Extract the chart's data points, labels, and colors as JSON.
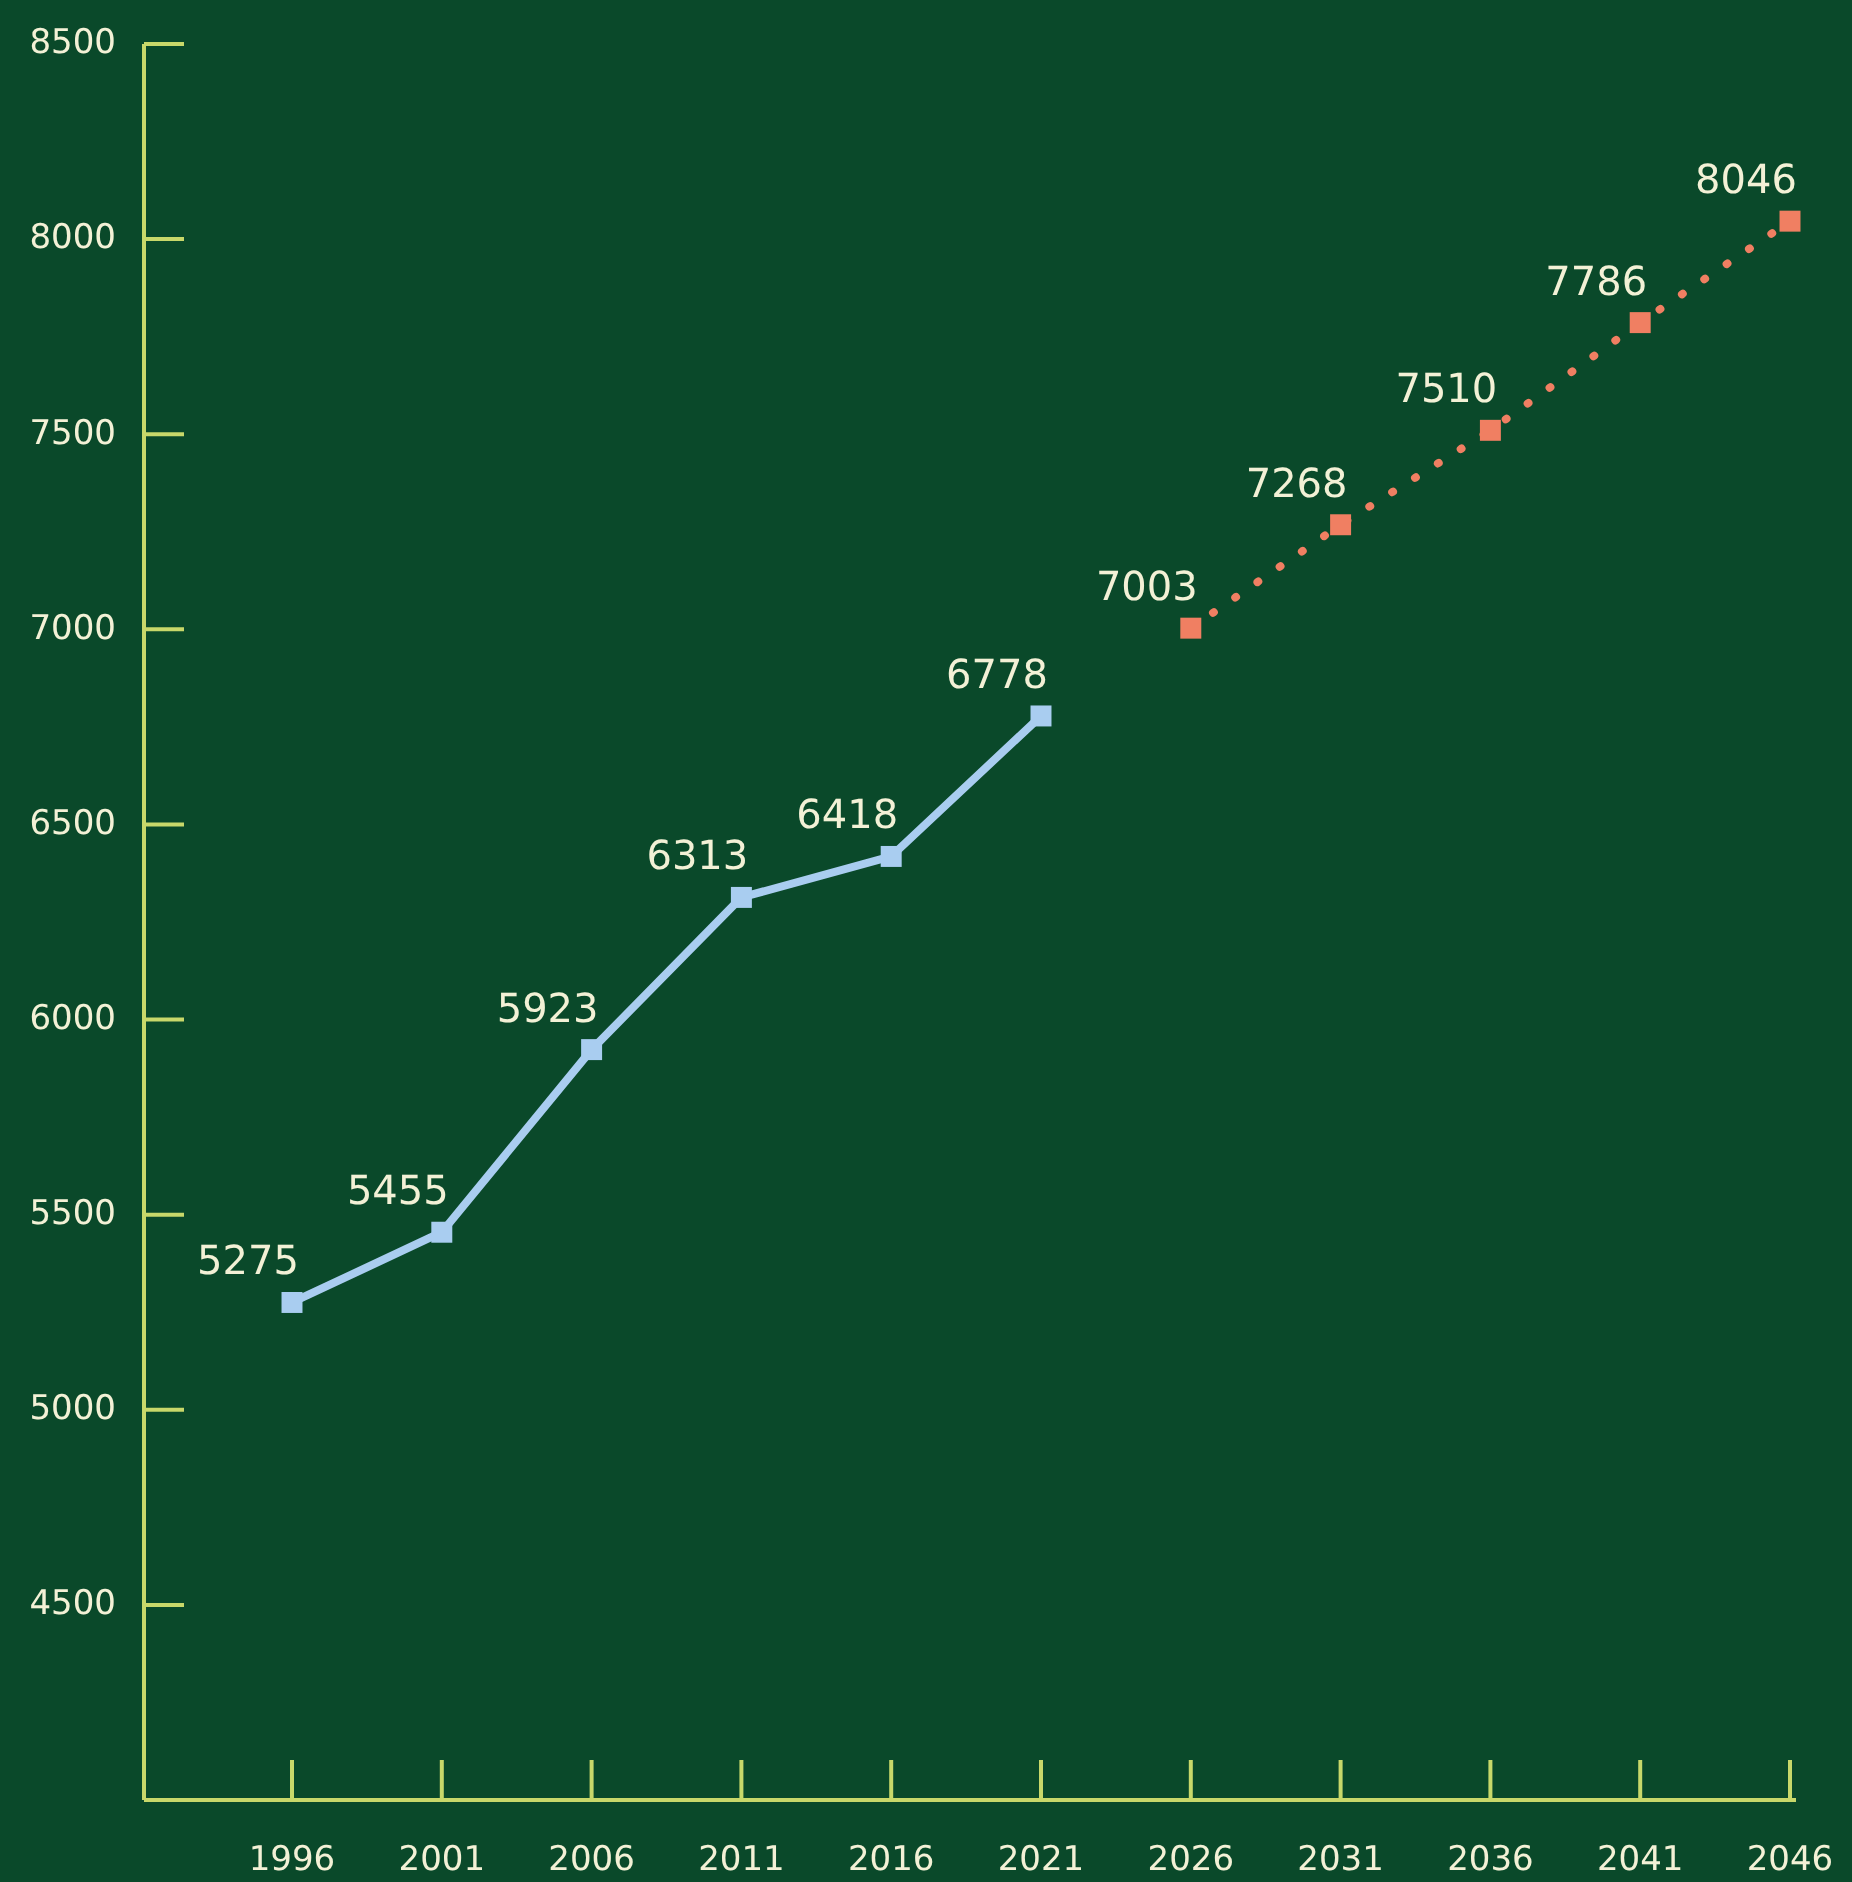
{
  "chart_data": {
    "type": "line",
    "categories": [
      "1996",
      "2001",
      "2006",
      "2011",
      "2016",
      "2021",
      "2026",
      "2031",
      "2036",
      "2041",
      "2046"
    ],
    "series": [
      {
        "color": "#a9cdf0",
        "values": [
          5275,
          5455,
          5923,
          6313,
          6418,
          6778,
          null,
          null,
          null,
          null,
          null
        ],
        "line_style": "solid"
      },
      {
        "color": "#f07f62",
        "values": [
          null,
          null,
          null,
          null,
          null,
          null,
          7003,
          7268,
          7510,
          7786,
          8046
        ],
        "line_style": "dotted"
      }
    ],
    "ylim": [
      4000,
      8500
    ],
    "yticks": [
      4500,
      5000,
      5500,
      6000,
      6500,
      7000,
      7500,
      8000,
      8500
    ],
    "marker": "square",
    "data_labels": true,
    "grid": false
  }
}
